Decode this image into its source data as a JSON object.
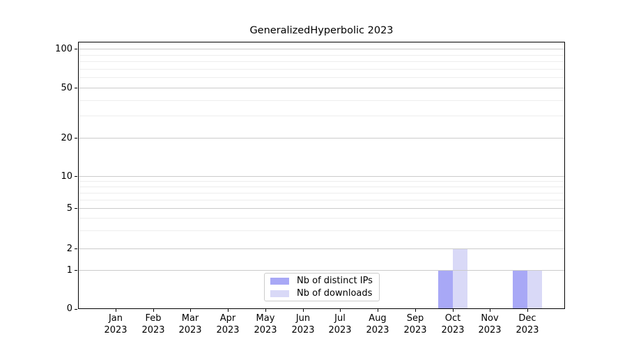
{
  "chart_data": {
    "type": "bar",
    "title": "GeneralizedHyperbolic 2023",
    "year_label": "2023",
    "categories": [
      "Jan",
      "Feb",
      "Mar",
      "Apr",
      "May",
      "Jun",
      "Jul",
      "Aug",
      "Sep",
      "Oct",
      "Nov",
      "Dec"
    ],
    "series": [
      {
        "name": "Nb of distinct IPs",
        "color": "#a8a8f6",
        "values": [
          0,
          0,
          0,
          0,
          0,
          0,
          0,
          0,
          0,
          1,
          0,
          1
        ]
      },
      {
        "name": "Nb of downloads",
        "color": "#d9d9f7",
        "values": [
          0,
          0,
          0,
          0,
          0,
          0,
          0,
          0,
          0,
          2,
          0,
          1
        ]
      }
    ],
    "xlabel": "",
    "ylabel": "",
    "y_ticks": [
      0,
      1,
      2,
      5,
      10,
      20,
      50,
      100
    ],
    "y_minor_ticks": [
      3,
      4,
      6,
      7,
      8,
      9,
      30,
      40,
      60,
      70,
      80,
      90
    ],
    "ylim": [
      0,
      115
    ],
    "yscale": "log-like (0,1,2,5,10,20,50,100)",
    "grid": true,
    "legend_position": "lower center",
    "colors": {
      "bar_distinct_ips": "#a8a8f6",
      "bar_downloads": "#d9d9f7",
      "grid_major": "#cbcbcb",
      "grid_minor": "#ededed",
      "frame": "#000000",
      "background": "#ffffff"
    }
  }
}
